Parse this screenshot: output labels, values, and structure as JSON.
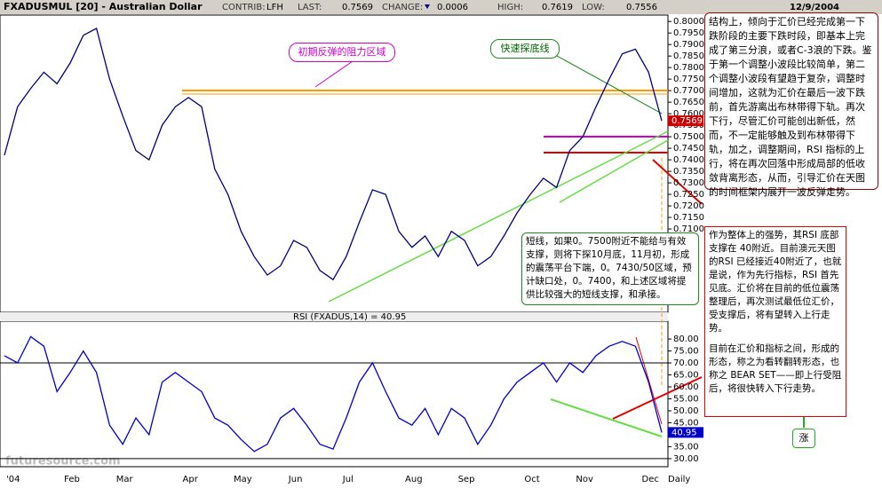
{
  "header": {
    "title": "FXADUSMUL [20] - Australian Dollar",
    "fields": [
      {
        "label": "CONTRIB:",
        "value": "LFH"
      },
      {
        "label": "LAST:",
        "value": 0.7569
      },
      {
        "label": "CHANGE:",
        "value": 0.0006
      },
      {
        "label": "HIGH:",
        "value": 0.7619
      },
      {
        "label": "LOW:",
        "value": 0.7556
      }
    ],
    "date": "12/9/2004"
  },
  "chart_data": [
    {
      "type": "line",
      "name": "price",
      "color": "#000080",
      "values": [
        0.742,
        0.763,
        0.771,
        0.778,
        0.773,
        0.782,
        0.794,
        0.797,
        0.775,
        0.759,
        0.744,
        0.74,
        0.755,
        0.763,
        0.767,
        0.763,
        0.736,
        0.725,
        0.709,
        0.698,
        0.69,
        0.694,
        0.705,
        0.702,
        0.692,
        0.688,
        0.698,
        0.713,
        0.727,
        0.725,
        0.709,
        0.702,
        0.707,
        0.698,
        0.709,
        0.705,
        0.694,
        0.698,
        0.707,
        0.717,
        0.725,
        0.732,
        0.728,
        0.744,
        0.75,
        0.763,
        0.775,
        0.786,
        0.788,
        0.778,
        0.7569
      ],
      "ylim": [
        0.675,
        0.802
      ],
      "yticks": [
        {
          "value": 0.71,
          "label": "0.7100"
        },
        {
          "value": 0.715,
          "label": "0.7150"
        },
        {
          "value": 0.72,
          "label": "0.7200"
        },
        {
          "value": 0.725,
          "label": "0.7250"
        },
        {
          "value": 0.73,
          "label": "0.7300"
        },
        {
          "value": 0.735,
          "label": "0.7350"
        },
        {
          "value": 0.74,
          "label": "0.7400"
        },
        {
          "value": 0.745,
          "label": "0.7450"
        },
        {
          "value": 0.75,
          "label": "0.7500"
        },
        {
          "value": 0.755,
          "label": "0.7550"
        },
        {
          "value": 0.76,
          "label": "0.7600"
        },
        {
          "value": 0.765,
          "label": "0.7650"
        },
        {
          "value": 0.77,
          "label": "0.7700"
        },
        {
          "value": 0.775,
          "label": "0.7750"
        },
        {
          "value": 0.78,
          "label": "0.7800"
        },
        {
          "value": 0.785,
          "label": "0.7850"
        },
        {
          "value": 0.79,
          "label": "0.7900"
        },
        {
          "value": 0.795,
          "label": "0.7950"
        },
        {
          "value": 0.8,
          "label": "0.8000"
        }
      ]
    },
    {
      "type": "line",
      "name": "rsi",
      "title": "RSI (FXADUS,14) = 40.95",
      "color": "#0000cc",
      "categories": [
        "'04",
        null,
        null,
        null,
        null,
        "Feb",
        null,
        null,
        null,
        "Mar",
        null,
        null,
        null,
        null,
        "Apr",
        null,
        null,
        null,
        "May",
        null,
        null,
        null,
        "Jun",
        null,
        null,
        null,
        "Jul",
        null,
        null,
        null,
        null,
        "Aug",
        null,
        null,
        null,
        "Sep",
        null,
        null,
        null,
        null,
        "Oct",
        null,
        null,
        null,
        "Nov",
        null,
        null,
        null,
        null,
        "Dec",
        null
      ],
      "values": [
        73,
        70,
        81,
        77,
        58,
        66,
        75,
        66,
        44,
        36,
        47,
        40,
        62,
        66,
        62,
        58,
        47,
        44,
        38,
        33,
        36,
        47,
        51,
        44,
        36,
        34,
        47,
        62,
        70,
        58,
        47,
        44,
        51,
        40,
        51,
        47,
        36,
        44,
        55,
        62,
        66,
        70,
        62,
        70,
        66,
        73,
        77,
        79,
        77,
        62,
        40.95
      ],
      "ylim": [
        27,
        86.7
      ],
      "yticks": [
        {
          "value": 30,
          "label": "30.00"
        },
        {
          "value": 35,
          "label": "35.00"
        },
        {
          "value": 40,
          "label": "40.00"
        },
        {
          "value": 45,
          "label": "45.00"
        },
        {
          "value": 50,
          "label": "50.00"
        },
        {
          "value": 55,
          "label": "55.00"
        },
        {
          "value": 60,
          "label": "60.00"
        },
        {
          "value": 65,
          "label": "65.00"
        },
        {
          "value": 70,
          "label": "70.00"
        },
        {
          "value": 75,
          "label": "75.00"
        },
        {
          "value": 80,
          "label": "80.00"
        }
      ],
      "hlines": [
        70,
        30
      ],
      "x_label": "Daily"
    }
  ],
  "annotations": {
    "resistance": "初期反弹的阻力区域",
    "fast_line": "快速探底线",
    "structure": "结构上，倾向于汇价已经完成第一下跌阶段的主要下跌时段，即基本上完成了第三分浪，或者C-3浪的下跌。鉴于第一个调整小波段比较简单，第二个调整小波段有望趋于复杂，调整时间增加，这就为汇价在最后一波下跌前，首先游离出布林带得下轨。再次下行，尽管汇价可能创出新低，然而，不一定能够触及到布林带得下轨，加之，调整期间，RSI 指标的上行，将在再次回落中形成局部的低收敛背离形态，从而，引导汇价在天图的时间框架内展开一波反弹走势。",
    "support": "短线，如果0。7500附近不能给与有效支撑，则将下探10月底，11月初，形成的震荡平台下端，0。7430/50区域，预计缺口处，0。7400，和上述区域将提供比较强大的短线支撑，和承接。",
    "rsi_note": "作为整体上的强势，其RSI 底部支撑在 40附近。目前澳元天图的RSI 已经接近40附近了，也就是说，作为先行指标，RSI 首先见底。汇价将在目前的低位震荡整理后，再次测试最低位汇价，受支撑后，将有望转入上行走势。",
    "pattern_note": "目前在汇价和指标之间，形成的形态，称之为看转翻转形态，也称之 BEAR SET——即上行受阻后，将很快转入下行走势。",
    "up": "涨",
    "watermark": "futuresource.com"
  }
}
